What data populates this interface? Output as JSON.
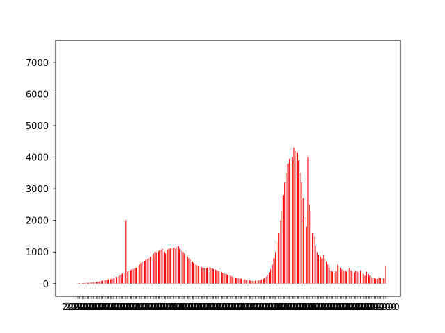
{
  "chart_data": {
    "type": "bar",
    "title": "",
    "xlabel": "",
    "ylabel": "",
    "ylim": [
      -400,
      7700
    ],
    "yticks": [
      0,
      1000,
      2000,
      3000,
      4000,
      5000,
      6000,
      7000
    ],
    "ytick_labels": [
      "0",
      "1000",
      "2000",
      "3000",
      "4000",
      "5000",
      "6000",
      "7000"
    ],
    "xtick_labels_note": "dense date labels overlap and are illegible",
    "grid": false,
    "bar_color": "#ff0000",
    "categories": [
      "1",
      "2",
      "3",
      "4",
      "5",
      "6",
      "7",
      "8",
      "9",
      "10",
      "11",
      "12",
      "13",
      "14",
      "15",
      "16",
      "17",
      "18",
      "19",
      "20",
      "21",
      "22",
      "23",
      "24",
      "25",
      "26",
      "27",
      "28",
      "29",
      "30",
      "31",
      "32",
      "33",
      "34",
      "35",
      "36",
      "37",
      "38",
      "39",
      "40",
      "41",
      "42",
      "43",
      "44",
      "45",
      "46",
      "47",
      "48",
      "49",
      "50",
      "51",
      "52",
      "53",
      "54",
      "55",
      "56",
      "57",
      "58",
      "59",
      "60",
      "61",
      "62",
      "63",
      "64",
      "65",
      "66",
      "67",
      "68",
      "69",
      "70",
      "71",
      "72",
      "73",
      "74",
      "75",
      "76",
      "77",
      "78",
      "79",
      "80",
      "81",
      "82",
      "83",
      "84",
      "85",
      "86",
      "87",
      "88",
      "89",
      "90",
      "91",
      "92",
      "93",
      "94",
      "95",
      "96",
      "97",
      "98",
      "99",
      "100",
      "101",
      "102",
      "103",
      "104",
      "105",
      "106",
      "107",
      "108",
      "109",
      "110",
      "111",
      "112",
      "113",
      "114",
      "115",
      "116",
      "117",
      "118",
      "119",
      "120",
      "121",
      "122",
      "123",
      "124",
      "125",
      "126",
      "127",
      "128",
      "129",
      "130",
      "131",
      "132",
      "133",
      "134",
      "135",
      "136",
      "137",
      "138",
      "139",
      "140",
      "141",
      "142",
      "143",
      "144",
      "145",
      "146",
      "147",
      "148",
      "149",
      "150",
      "151",
      "152",
      "153",
      "154",
      "155",
      "156",
      "157",
      "158",
      "159",
      "160",
      "161",
      "162",
      "163",
      "164",
      "165",
      "166",
      "167",
      "168",
      "169",
      "170",
      "171",
      "172",
      "173",
      "174",
      "175",
      "176",
      "177",
      "178",
      "179",
      "180",
      "181",
      "182",
      "183",
      "184",
      "185",
      "186",
      "187",
      "188",
      "189",
      "190",
      "191",
      "192",
      "193",
      "194",
      "195",
      "196",
      "197",
      "198",
      "199",
      "200"
    ],
    "values": [
      10,
      12,
      15,
      18,
      20,
      22,
      25,
      28,
      30,
      35,
      40,
      45,
      50,
      60,
      70,
      80,
      90,
      100,
      110,
      120,
      130,
      140,
      150,
      170,
      190,
      210,
      230,
      260,
      290,
      320,
      350,
      2000,
      380,
      400,
      420,
      440,
      460,
      480,
      500,
      550,
      600,
      650,
      700,
      720,
      750,
      780,
      800,
      850,
      900,
      950,
      1000,
      980,
      1020,
      1050,
      1080,
      1100,
      1000,
      950,
      1080,
      1100,
      1110,
      1120,
      1130,
      1100,
      1150,
      1180,
      1100,
      1050,
      1000,
      950,
      900,
      850,
      800,
      750,
      700,
      650,
      600,
      580,
      560,
      540,
      520,
      500,
      490,
      480,
      500,
      520,
      500,
      480,
      460,
      440,
      420,
      400,
      380,
      360,
      340,
      320,
      300,
      280,
      260,
      240,
      220,
      200,
      190,
      180,
      170,
      160,
      150,
      140,
      130,
      120,
      110,
      100,
      95,
      90,
      85,
      90,
      95,
      100,
      110,
      130,
      150,
      180,
      220,
      280,
      350,
      450,
      600,
      800,
      1000,
      1300,
      1600,
      2000,
      2300,
      2800,
      3200,
      3500,
      3800,
      3950,
      3800,
      4000,
      4300,
      4200,
      4150,
      3900,
      3500,
      3200,
      2700,
      2100,
      1800,
      4000,
      2500,
      2300,
      1600,
      1500,
      1200,
      1000,
      900,
      850,
      800,
      900,
      800,
      700,
      600,
      500,
      400,
      380,
      350,
      400,
      600,
      550,
      500,
      450,
      420,
      400,
      380,
      450,
      500,
      420,
      380,
      350,
      400,
      380,
      360,
      420,
      350,
      300,
      250,
      380,
      300,
      250,
      200,
      180,
      170,
      160,
      150,
      200,
      180,
      160,
      170,
      550
    ]
  }
}
